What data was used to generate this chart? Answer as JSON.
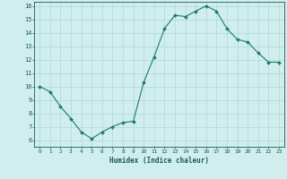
{
  "x": [
    0,
    1,
    2,
    3,
    4,
    5,
    6,
    7,
    8,
    9,
    10,
    11,
    12,
    13,
    14,
    15,
    16,
    17,
    18,
    19,
    20,
    21,
    22,
    23
  ],
  "y": [
    10.0,
    9.6,
    8.5,
    7.6,
    6.6,
    6.1,
    6.6,
    7.0,
    7.3,
    7.4,
    10.3,
    12.2,
    14.3,
    15.3,
    15.2,
    15.6,
    16.0,
    15.6,
    14.3,
    13.5,
    13.3,
    12.5,
    11.8,
    11.8
  ],
  "xlabel": "Humidex (Indice chaleur)",
  "ylim_min": 5.5,
  "ylim_max": 16.3,
  "xlim_min": -0.5,
  "xlim_max": 23.5,
  "yticks": [
    6,
    7,
    8,
    9,
    10,
    11,
    12,
    13,
    14,
    15,
    16
  ],
  "xticks": [
    0,
    1,
    2,
    3,
    4,
    5,
    6,
    7,
    8,
    9,
    10,
    11,
    12,
    13,
    14,
    15,
    16,
    17,
    18,
    19,
    20,
    21,
    22,
    23
  ],
  "line_color": "#1a7a6e",
  "marker_color": "#1a7a6e",
  "bg_color": "#d0eeee",
  "grid_color": "#b0d8d0",
  "label_color": "#1a5a50",
  "tick_color": "#1a5a50"
}
